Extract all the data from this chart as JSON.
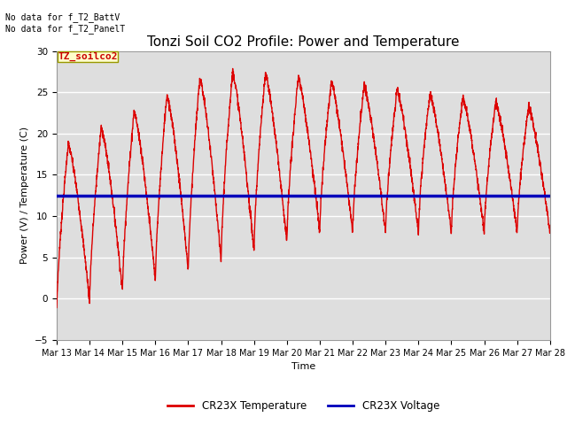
{
  "title": "Tonzi Soil CO2 Profile: Power and Temperature",
  "ylabel": "Power (V) / Temperature (C)",
  "xlabel": "Time",
  "ylim": [
    -5,
    30
  ],
  "yticks": [
    -5,
    0,
    5,
    10,
    15,
    20,
    25,
    30
  ],
  "annotation_text": "No data for f_T2_BattV\nNo data for f_T2_PanelT",
  "legend_label_box": "TZ_soilco2",
  "legend_line1": "CR23X Temperature",
  "legend_line2": "CR23X Voltage",
  "temp_color": "#dd0000",
  "voltage_color": "#0000bb",
  "voltage_value": 12.5,
  "plot_bg_color": "#dedede",
  "title_fontsize": 11,
  "axis_fontsize": 8,
  "tick_fontsize": 7.5
}
